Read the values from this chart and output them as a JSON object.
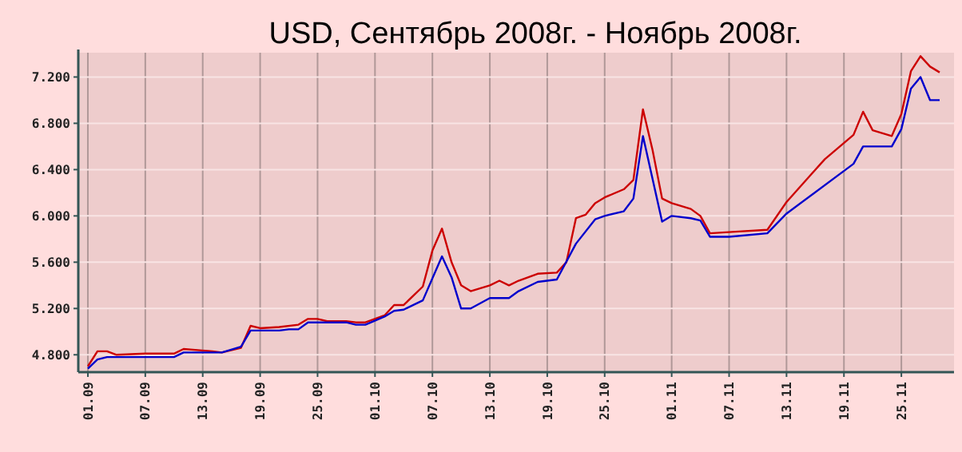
{
  "chart_data": {
    "type": "line",
    "title": "USD, Сентябрь 2008г. - Ноябрь 2008г.",
    "xlim": [
      "2008-08-31",
      "2008-11-30"
    ],
    "xticks": [
      {
        "value": "2008-09-01",
        "label": "01.09"
      },
      {
        "value": "2008-09-07",
        "label": "07.09"
      },
      {
        "value": "2008-09-13",
        "label": "13.09"
      },
      {
        "value": "2008-09-19",
        "label": "19.09"
      },
      {
        "value": "2008-09-25",
        "label": "25.09"
      },
      {
        "value": "2008-10-01",
        "label": "01.10"
      },
      {
        "value": "2008-10-07",
        "label": "07.10"
      },
      {
        "value": "2008-10-13",
        "label": "13.10"
      },
      {
        "value": "2008-10-19",
        "label": "19.10"
      },
      {
        "value": "2008-10-25",
        "label": "25.10"
      },
      {
        "value": "2008-11-01",
        "label": "01.11"
      },
      {
        "value": "2008-11-07",
        "label": "07.11"
      },
      {
        "value": "2008-11-13",
        "label": "13.11"
      },
      {
        "value": "2008-11-19",
        "label": "19.11"
      },
      {
        "value": "2008-11-25",
        "label": "25.11"
      }
    ],
    "ylim": [
      4.65,
      7.41
    ],
    "yticks": [
      {
        "value": 4.8,
        "label": "4.800"
      },
      {
        "value": 5.2,
        "label": "5.200"
      },
      {
        "value": 5.6,
        "label": "5.600"
      },
      {
        "value": 6.0,
        "label": "6.000"
      },
      {
        "value": 6.4,
        "label": "6.400"
      },
      {
        "value": 6.8,
        "label": "6.800"
      },
      {
        "value": 7.2,
        "label": "7.200"
      }
    ],
    "grid": true,
    "series": [
      {
        "color": "#cc0000",
        "x": [
          "2008-09-01",
          "2008-09-02",
          "2008-09-03",
          "2008-09-04",
          "2008-09-07",
          "2008-09-10",
          "2008-09-11",
          "2008-09-14",
          "2008-09-15",
          "2008-09-17",
          "2008-09-18",
          "2008-09-19",
          "2008-09-21",
          "2008-09-23",
          "2008-09-24",
          "2008-09-25",
          "2008-09-26",
          "2008-09-28",
          "2008-09-29",
          "2008-09-30",
          "2008-10-02",
          "2008-10-03",
          "2008-10-04",
          "2008-10-06",
          "2008-10-07",
          "2008-10-08",
          "2008-10-09",
          "2008-10-10",
          "2008-10-11",
          "2008-10-13",
          "2008-10-14",
          "2008-10-15",
          "2008-10-16",
          "2008-10-18",
          "2008-10-20",
          "2008-10-21",
          "2008-10-22",
          "2008-10-23",
          "2008-10-24",
          "2008-10-25",
          "2008-10-27",
          "2008-10-28",
          "2008-10-29",
          "2008-10-30",
          "2008-10-31",
          "2008-11-01",
          "2008-11-03",
          "2008-11-04",
          "2008-11-05",
          "2008-11-07",
          "2008-11-11",
          "2008-11-13",
          "2008-11-17",
          "2008-11-20",
          "2008-11-21",
          "2008-11-22",
          "2008-11-24",
          "2008-11-25",
          "2008-11-26",
          "2008-11-27",
          "2008-11-28",
          "2008-11-29"
        ],
        "values": [
          4.7,
          4.83,
          4.83,
          4.8,
          4.81,
          4.81,
          4.85,
          4.83,
          4.82,
          4.86,
          5.05,
          5.03,
          5.04,
          5.06,
          5.11,
          5.11,
          5.09,
          5.09,
          5.08,
          5.08,
          5.14,
          5.23,
          5.23,
          5.39,
          5.7,
          5.89,
          5.6,
          5.4,
          5.35,
          5.4,
          5.44,
          5.4,
          5.44,
          5.5,
          5.51,
          5.6,
          5.98,
          6.01,
          6.11,
          6.16,
          6.23,
          6.31,
          6.92,
          6.57,
          6.15,
          6.11,
          6.06,
          6.0,
          5.85,
          5.86,
          5.88,
          6.12,
          6.49,
          6.7,
          6.9,
          6.74,
          6.69,
          6.88,
          7.25,
          7.38,
          7.29,
          7.24
        ]
      },
      {
        "color": "#0000cc",
        "x": [
          "2008-09-01",
          "2008-09-02",
          "2008-09-03",
          "2008-09-10",
          "2008-09-11",
          "2008-09-15",
          "2008-09-17",
          "2008-09-18",
          "2008-09-21",
          "2008-09-22",
          "2008-09-23",
          "2008-09-24",
          "2008-09-28",
          "2008-09-29",
          "2008-09-30",
          "2008-10-02",
          "2008-10-03",
          "2008-10-04",
          "2008-10-06",
          "2008-10-08",
          "2008-10-09",
          "2008-10-10",
          "2008-10-11",
          "2008-10-13",
          "2008-10-15",
          "2008-10-16",
          "2008-10-18",
          "2008-10-20",
          "2008-10-22",
          "2008-10-24",
          "2008-10-25",
          "2008-10-27",
          "2008-10-28",
          "2008-10-29",
          "2008-10-31",
          "2008-11-01",
          "2008-11-03",
          "2008-11-04",
          "2008-11-05",
          "2008-11-07",
          "2008-11-11",
          "2008-11-13",
          "2008-11-20",
          "2008-11-21",
          "2008-11-24",
          "2008-11-25",
          "2008-11-26",
          "2008-11-27",
          "2008-11-28",
          "2008-11-29"
        ],
        "values": [
          4.68,
          4.76,
          4.78,
          4.78,
          4.82,
          4.82,
          4.87,
          5.01,
          5.01,
          5.02,
          5.02,
          5.08,
          5.08,
          5.06,
          5.06,
          5.13,
          5.18,
          5.19,
          5.27,
          5.65,
          5.47,
          5.2,
          5.2,
          5.29,
          5.29,
          5.35,
          5.43,
          5.45,
          5.76,
          5.97,
          6.0,
          6.04,
          6.15,
          6.69,
          5.95,
          6.0,
          5.98,
          5.96,
          5.82,
          5.82,
          5.85,
          6.02,
          6.45,
          6.6,
          6.6,
          6.75,
          7.1,
          7.2,
          7.0,
          7.0
        ]
      }
    ]
  }
}
